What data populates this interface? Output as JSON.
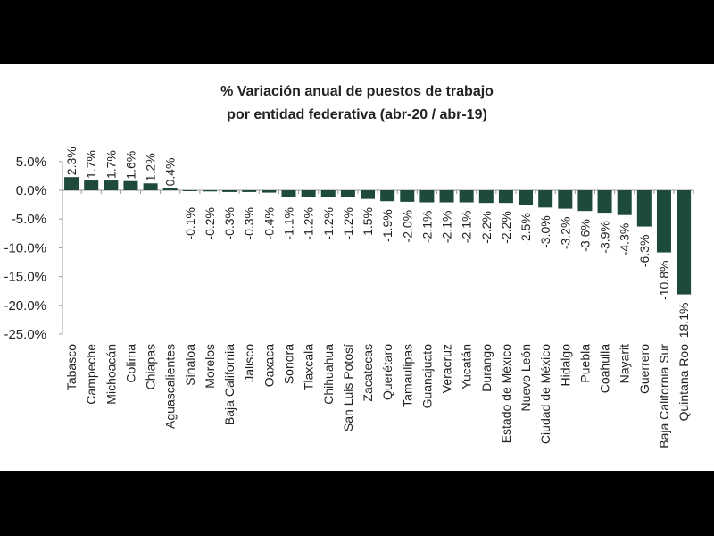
{
  "chart_data": {
    "type": "bar",
    "title_lines": [
      "% Variación anual de puestos de trabajo",
      "por entidad federativa (abr-20 / abr-19)"
    ],
    "xlabel": "",
    "ylabel": "",
    "ylim": [
      -25,
      5
    ],
    "yticks": [
      5,
      0,
      -5,
      -10,
      -15,
      -20,
      -25
    ],
    "ytick_labels": [
      "5.0%",
      "0.0%",
      "-5.0%",
      "-10.0%",
      "-15.0%",
      "-20.0%",
      "-25.0%"
    ],
    "grid": false,
    "bar_color": "#1e4a3a",
    "categories": [
      "Tabasco",
      "Campeche",
      "Michoacán",
      "Colima",
      "Chiapas",
      "Aguascalientes",
      "Sinaloa",
      "Morelos",
      "Baja California",
      "Jalisco",
      "Oaxaca",
      "Sonora",
      "Tlaxcala",
      "Chihuahua",
      "San Luis Potosí",
      "Zacatecas",
      "Querétaro",
      "Tamaulipas",
      "Guanajuato",
      "Veracruz",
      "Yucatán",
      "Durango",
      "Estado de México",
      "Nuevo León",
      "Ciudad de México",
      "Hidalgo",
      "Puebla",
      "Coahuila",
      "Nayarit",
      "Guerrero",
      "Baja California Sur",
      "Quintana Roo"
    ],
    "values": [
      2.3,
      1.7,
      1.7,
      1.6,
      1.2,
      0.4,
      -0.1,
      -0.2,
      -0.3,
      -0.3,
      -0.4,
      -1.1,
      -1.2,
      -1.2,
      -1.2,
      -1.5,
      -1.9,
      -2.0,
      -2.1,
      -2.1,
      -2.1,
      -2.2,
      -2.2,
      -2.5,
      -3.0,
      -3.2,
      -3.6,
      -3.9,
      -4.3,
      -6.3,
      -10.8,
      -18.1
    ],
    "data_labels": [
      "2.3%",
      "1.7%",
      "1.7%",
      "1.6%",
      "1.2%",
      "0.4%",
      "-0.1%",
      "-0.2%",
      "-0.3%",
      "-0.3%",
      "-0.4%",
      "-1.1%",
      "-1.2%",
      "-1.2%",
      "-1.2%",
      "-1.5%",
      "-1.9%",
      "-2.0%",
      "-2.1%",
      "-2.1%",
      "-2.1%",
      "-2.2%",
      "-2.2%",
      "-2.5%",
      "-3.0%",
      "-3.2%",
      "-3.6%",
      "-3.9%",
      "-4.3%",
      "-6.3%",
      "-10.8%",
      "-18.1%"
    ]
  }
}
